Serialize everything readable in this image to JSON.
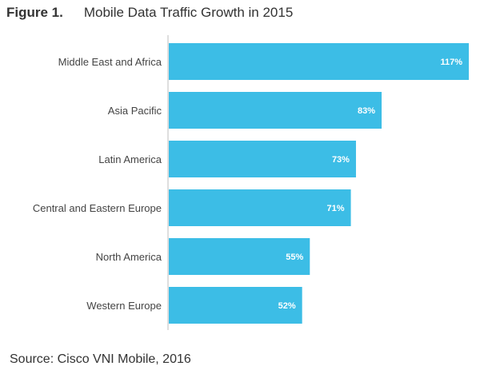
{
  "figure": {
    "label": "Figure 1.",
    "title": "Mobile Data Traffic Growth in 2015",
    "source": "Source: Cisco VNI Mobile, 2016"
  },
  "chart_data": {
    "type": "bar",
    "orientation": "horizontal",
    "title": "Mobile Data Traffic Growth in 2015",
    "categories": [
      "Middle East and Africa",
      "Asia Pacific",
      "Latin America",
      "Central and Eastern Europe",
      "North America",
      "Western Europe"
    ],
    "values": [
      117,
      83,
      73,
      71,
      55,
      52
    ],
    "labels": [
      "117%",
      "83%",
      "73%",
      "71%",
      "55%",
      "52%"
    ],
    "xlabel": "",
    "ylabel": "",
    "xlim": [
      0,
      117
    ],
    "grid": false,
    "legend": "none",
    "bar_color": "#3cbde6",
    "axis_color": "#bdbdbd"
  }
}
